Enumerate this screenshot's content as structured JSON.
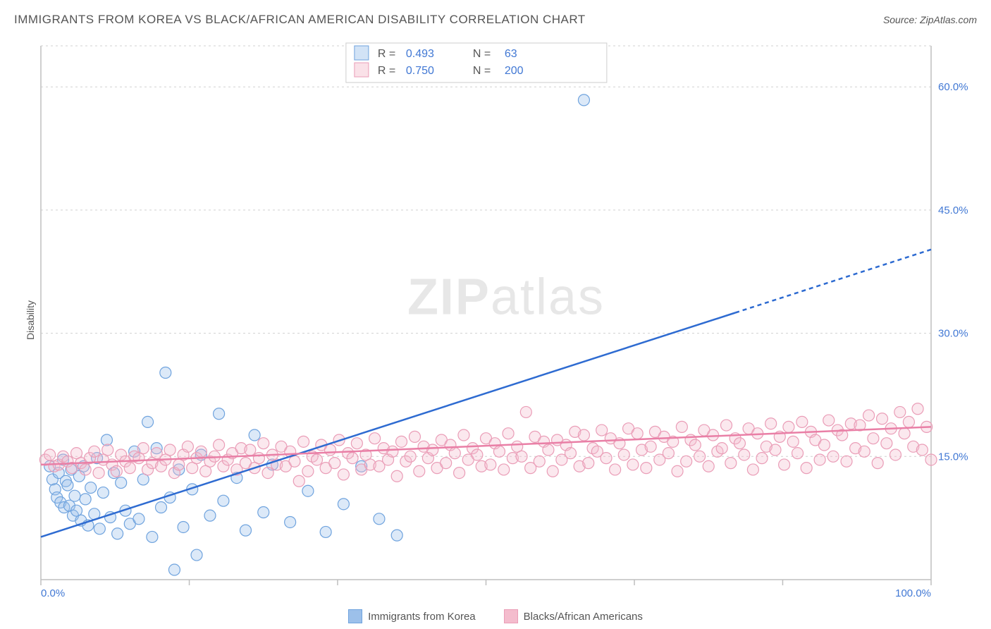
{
  "title": "IMMIGRANTS FROM KOREA VS BLACK/AFRICAN AMERICAN DISABILITY CORRELATION CHART",
  "source_label": "Source:",
  "source_name": "ZipAtlas.com",
  "ylabel": "Disability",
  "watermark": {
    "a": "ZIP",
    "b": "atlas"
  },
  "chart": {
    "type": "scatter",
    "xlim": [
      0,
      100
    ],
    "ylim": [
      0,
      65
    ],
    "x_ticks": [
      0,
      16.67,
      33.33,
      50,
      66.67,
      83.33,
      100
    ],
    "x_tick_labels": {
      "0": "0.0%",
      "100": "100.0%"
    },
    "y_ticks": [
      15,
      30,
      45,
      60
    ],
    "y_tick_labels": {
      "15": "15.0%",
      "30": "30.0%",
      "45": "45.0%",
      "60": "60.0%"
    },
    "grid_color": "#d7d7d7",
    "axis_color": "#bfbfbf",
    "background_color": "#ffffff",
    "marker_radius": 8,
    "series": [
      {
        "id": "korea",
        "label": "Immigrants from Korea",
        "color_fill": "#9cc0ea",
        "color_stroke": "#6fa3de",
        "trend_color": "#2e6bd1",
        "R": "0.493",
        "N": "63",
        "trend": {
          "x1": 0,
          "y1": 5.2,
          "x2_solid": 78,
          "y2_solid": 32.5,
          "x2": 100,
          "y2": 40.2
        },
        "points": [
          [
            1,
            13.8
          ],
          [
            1.3,
            12.2
          ],
          [
            1.6,
            11.0
          ],
          [
            1.8,
            10.0
          ],
          [
            2,
            13.0
          ],
          [
            2.2,
            9.4
          ],
          [
            2.5,
            14.6
          ],
          [
            2.6,
            8.8
          ],
          [
            2.8,
            12.0
          ],
          [
            3,
            11.5
          ],
          [
            3.2,
            9.0
          ],
          [
            3.4,
            13.4
          ],
          [
            3.6,
            7.8
          ],
          [
            3.8,
            10.2
          ],
          [
            4,
            8.4
          ],
          [
            4.3,
            12.6
          ],
          [
            4.5,
            7.2
          ],
          [
            4.8,
            13.8
          ],
          [
            5,
            9.8
          ],
          [
            5.3,
            6.6
          ],
          [
            5.6,
            11.2
          ],
          [
            6,
            8.0
          ],
          [
            6.3,
            14.8
          ],
          [
            6.6,
            6.2
          ],
          [
            7,
            10.6
          ],
          [
            7.4,
            17.0
          ],
          [
            7.8,
            7.6
          ],
          [
            8.2,
            13.0
          ],
          [
            8.6,
            5.6
          ],
          [
            9,
            11.8
          ],
          [
            9.5,
            8.4
          ],
          [
            10,
            6.8
          ],
          [
            10.5,
            15.6
          ],
          [
            11,
            7.4
          ],
          [
            11.5,
            12.2
          ],
          [
            12,
            19.2
          ],
          [
            12.5,
            5.2
          ],
          [
            13,
            16.0
          ],
          [
            13.5,
            8.8
          ],
          [
            14,
            25.2
          ],
          [
            14.5,
            10.0
          ],
          [
            15,
            1.2
          ],
          [
            15.5,
            13.4
          ],
          [
            16,
            6.4
          ],
          [
            17,
            11.0
          ],
          [
            17.5,
            3.0
          ],
          [
            18,
            15.2
          ],
          [
            19,
            7.8
          ],
          [
            20,
            20.2
          ],
          [
            20.5,
            9.6
          ],
          [
            22,
            12.4
          ],
          [
            23,
            6.0
          ],
          [
            24,
            17.6
          ],
          [
            25,
            8.2
          ],
          [
            26,
            14.0
          ],
          [
            28,
            7.0
          ],
          [
            30,
            10.8
          ],
          [
            32,
            5.8
          ],
          [
            34,
            9.2
          ],
          [
            36,
            13.8
          ],
          [
            38,
            7.4
          ],
          [
            40,
            5.4
          ],
          [
            61,
            58.4
          ]
        ]
      },
      {
        "id": "black",
        "label": "Blacks/African Americans",
        "color_fill": "#f4bccd",
        "color_stroke": "#ea9db7",
        "trend_color": "#e97fa6",
        "R": "0.750",
        "N": "200",
        "trend": {
          "x1": 0,
          "y1": 14.0,
          "x2_solid": 100,
          "y2_solid": 18.6,
          "x2": 100,
          "y2": 18.6
        },
        "points": [
          [
            0.5,
            14.6
          ],
          [
            1,
            15.2
          ],
          [
            1.5,
            13.8
          ],
          [
            2,
            14.0
          ],
          [
            2.5,
            15.0
          ],
          [
            3,
            14.4
          ],
          [
            3.5,
            13.6
          ],
          [
            4,
            15.4
          ],
          [
            4.5,
            14.2
          ],
          [
            5,
            13.4
          ],
          [
            5.5,
            14.8
          ],
          [
            6,
            15.6
          ],
          [
            6.5,
            13.0
          ],
          [
            7,
            14.6
          ],
          [
            7.5,
            15.8
          ],
          [
            8,
            14.0
          ],
          [
            8.5,
            13.2
          ],
          [
            9,
            15.2
          ],
          [
            9.5,
            14.4
          ],
          [
            10,
            13.6
          ],
          [
            10.5,
            15.0
          ],
          [
            11,
            14.8
          ],
          [
            11.5,
            16.0
          ],
          [
            12,
            13.4
          ],
          [
            12.5,
            14.2
          ],
          [
            13,
            15.4
          ],
          [
            13.5,
            13.8
          ],
          [
            14,
            14.6
          ],
          [
            14.5,
            15.8
          ],
          [
            15,
            13.0
          ],
          [
            15.5,
            14.0
          ],
          [
            16,
            15.2
          ],
          [
            16.5,
            16.2
          ],
          [
            17,
            13.6
          ],
          [
            17.5,
            14.8
          ],
          [
            18,
            15.6
          ],
          [
            18.5,
            13.2
          ],
          [
            19,
            14.4
          ],
          [
            19.5,
            15.0
          ],
          [
            20,
            16.4
          ],
          [
            20.5,
            13.8
          ],
          [
            21,
            14.6
          ],
          [
            21.5,
            15.4
          ],
          [
            22,
            13.4
          ],
          [
            22.5,
            16.0
          ],
          [
            23,
            14.2
          ],
          [
            23.5,
            15.8
          ],
          [
            24,
            13.6
          ],
          [
            24.5,
            14.8
          ],
          [
            25,
            16.6
          ],
          [
            25.5,
            13.0
          ],
          [
            26,
            15.2
          ],
          [
            26.5,
            14.0
          ],
          [
            27,
            16.2
          ],
          [
            27.5,
            13.8
          ],
          [
            28,
            15.6
          ],
          [
            28.5,
            14.4
          ],
          [
            29,
            12.0
          ],
          [
            29.5,
            16.8
          ],
          [
            30,
            13.2
          ],
          [
            30.5,
            15.0
          ],
          [
            31,
            14.6
          ],
          [
            31.5,
            16.4
          ],
          [
            32,
            13.6
          ],
          [
            32.5,
            15.8
          ],
          [
            33,
            14.2
          ],
          [
            33.5,
            17.0
          ],
          [
            34,
            12.8
          ],
          [
            34.5,
            15.4
          ],
          [
            35,
            14.8
          ],
          [
            35.5,
            16.6
          ],
          [
            36,
            13.4
          ],
          [
            36.5,
            15.2
          ],
          [
            37,
            14.0
          ],
          [
            37.5,
            17.2
          ],
          [
            38,
            13.8
          ],
          [
            38.5,
            16.0
          ],
          [
            39,
            14.6
          ],
          [
            39.5,
            15.6
          ],
          [
            40,
            12.6
          ],
          [
            40.5,
            16.8
          ],
          [
            41,
            14.4
          ],
          [
            41.5,
            15.0
          ],
          [
            42,
            17.4
          ],
          [
            42.5,
            13.2
          ],
          [
            43,
            16.2
          ],
          [
            43.5,
            14.8
          ],
          [
            44,
            15.8
          ],
          [
            44.5,
            13.6
          ],
          [
            45,
            17.0
          ],
          [
            45.5,
            14.2
          ],
          [
            46,
            16.4
          ],
          [
            46.5,
            15.4
          ],
          [
            47,
            13.0
          ],
          [
            47.5,
            17.6
          ],
          [
            48,
            14.6
          ],
          [
            48.5,
            16.0
          ],
          [
            49,
            15.2
          ],
          [
            49.5,
            13.8
          ],
          [
            50,
            17.2
          ],
          [
            50.5,
            14.0
          ],
          [
            51,
            16.6
          ],
          [
            51.5,
            15.6
          ],
          [
            52,
            13.4
          ],
          [
            52.5,
            17.8
          ],
          [
            53,
            14.8
          ],
          [
            53.5,
            16.2
          ],
          [
            54,
            15.0
          ],
          [
            54.5,
            20.4
          ],
          [
            55,
            13.6
          ],
          [
            55.5,
            17.4
          ],
          [
            56,
            14.4
          ],
          [
            56.5,
            16.8
          ],
          [
            57,
            15.8
          ],
          [
            57.5,
            13.2
          ],
          [
            58,
            17.0
          ],
          [
            58.5,
            14.6
          ],
          [
            59,
            16.4
          ],
          [
            59.5,
            15.4
          ],
          [
            60,
            18.0
          ],
          [
            60.5,
            13.8
          ],
          [
            61,
            17.6
          ],
          [
            61.5,
            14.2
          ],
          [
            62,
            16.0
          ],
          [
            62.5,
            15.6
          ],
          [
            63,
            18.2
          ],
          [
            63.5,
            14.8
          ],
          [
            64,
            17.2
          ],
          [
            64.5,
            13.4
          ],
          [
            65,
            16.6
          ],
          [
            65.5,
            15.2
          ],
          [
            66,
            18.4
          ],
          [
            66.5,
            14.0
          ],
          [
            67,
            17.8
          ],
          [
            67.5,
            15.8
          ],
          [
            68,
            13.6
          ],
          [
            68.5,
            16.2
          ],
          [
            69,
            18.0
          ],
          [
            69.5,
            14.6
          ],
          [
            70,
            17.4
          ],
          [
            70.5,
            15.4
          ],
          [
            71,
            16.8
          ],
          [
            71.5,
            13.2
          ],
          [
            72,
            18.6
          ],
          [
            72.5,
            14.4
          ],
          [
            73,
            17.0
          ],
          [
            73.5,
            16.4
          ],
          [
            74,
            15.0
          ],
          [
            74.5,
            18.2
          ],
          [
            75,
            13.8
          ],
          [
            75.5,
            17.6
          ],
          [
            76,
            15.6
          ],
          [
            76.5,
            16.0
          ],
          [
            77,
            18.8
          ],
          [
            77.5,
            14.2
          ],
          [
            78,
            17.2
          ],
          [
            78.5,
            16.6
          ],
          [
            79,
            15.2
          ],
          [
            79.5,
            18.4
          ],
          [
            80,
            13.4
          ],
          [
            80.5,
            17.8
          ],
          [
            81,
            14.8
          ],
          [
            81.5,
            16.2
          ],
          [
            82,
            19.0
          ],
          [
            82.5,
            15.8
          ],
          [
            83,
            17.4
          ],
          [
            83.5,
            14.0
          ],
          [
            84,
            18.6
          ],
          [
            84.5,
            16.8
          ],
          [
            85,
            15.4
          ],
          [
            85.5,
            19.2
          ],
          [
            86,
            13.6
          ],
          [
            86.5,
            18.0
          ],
          [
            87,
            17.0
          ],
          [
            87.5,
            14.6
          ],
          [
            88,
            16.4
          ],
          [
            88.5,
            19.4
          ],
          [
            89,
            15.0
          ],
          [
            89.5,
            18.2
          ],
          [
            90,
            17.6
          ],
          [
            90.5,
            14.4
          ],
          [
            91,
            19.0
          ],
          [
            91.5,
            16.0
          ],
          [
            92,
            18.8
          ],
          [
            92.5,
            15.6
          ],
          [
            93,
            20.0
          ],
          [
            93.5,
            17.2
          ],
          [
            94,
            14.2
          ],
          [
            94.5,
            19.6
          ],
          [
            95,
            16.6
          ],
          [
            95.5,
            18.4
          ],
          [
            96,
            15.2
          ],
          [
            96.5,
            20.4
          ],
          [
            97,
            17.8
          ],
          [
            97.5,
            19.2
          ],
          [
            98,
            16.2
          ],
          [
            98.5,
            20.8
          ],
          [
            99,
            15.8
          ],
          [
            99.5,
            18.6
          ],
          [
            100,
            14.6
          ]
        ]
      }
    ]
  },
  "stats_legend": {
    "R_label": "R =",
    "N_label": "N ="
  }
}
